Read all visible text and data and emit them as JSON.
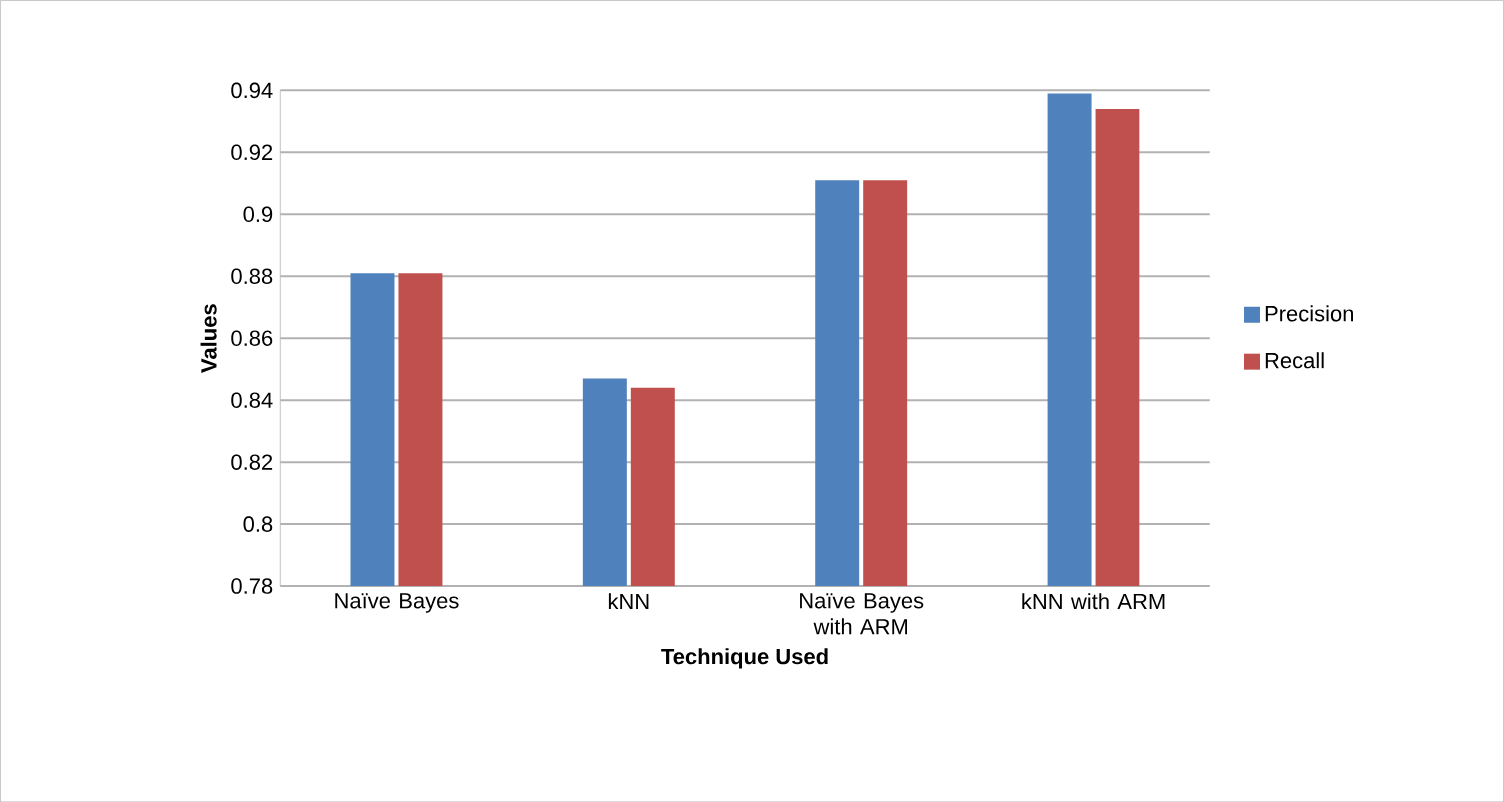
{
  "chart_data": {
    "type": "bar",
    "xlabel": "Technique Used",
    "ylabel": "Values",
    "categories": [
      "Naïve Bayes",
      "kNN",
      "Naïve Bayes with ARM",
      "kNN with ARM"
    ],
    "series": [
      {
        "name": "Precision",
        "color": "#4f81bd",
        "values": [
          0.881,
          0.847,
          0.911,
          0.939
        ]
      },
      {
        "name": "Recall",
        "color": "#c0504d",
        "values": [
          0.881,
          0.844,
          0.911,
          0.934
        ]
      }
    ],
    "ylim": [
      0.78,
      0.94
    ],
    "yticks": [
      0.78,
      0.8,
      0.82,
      0.84,
      0.86,
      0.88,
      0.9,
      0.92,
      0.94
    ],
    "grid": "y",
    "legend": "right"
  }
}
